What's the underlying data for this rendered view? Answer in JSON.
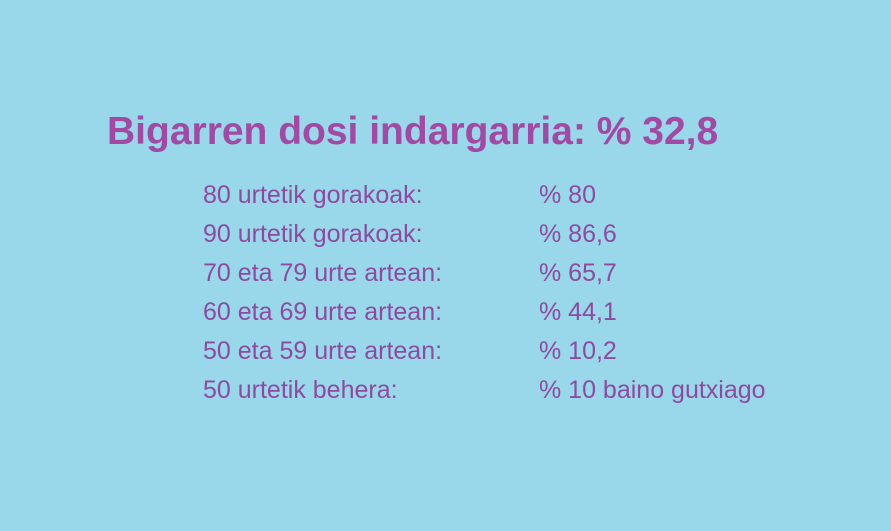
{
  "colors": {
    "background": "#98d8ea",
    "title": "#a349a4",
    "text": "#8f4aa0"
  },
  "title": "Bigarren dosi indargarria: % 32,8",
  "rows": [
    {
      "label": "80 urtetik gorakoak:",
      "value": "% 80"
    },
    {
      "label": "90 urtetik gorakoak:",
      "value": "% 86,6"
    },
    {
      "label": "70 eta 79 urte artean:",
      "value": "% 65,7"
    },
    {
      "label": "60 eta 69 urte artean:",
      "value": "% 44,1"
    },
    {
      "label": "50 eta 59 urte artean:",
      "value": "% 10,2"
    },
    {
      "label": "50 urtetik behera:",
      "value": "% 10 baino gutxiago"
    }
  ]
}
